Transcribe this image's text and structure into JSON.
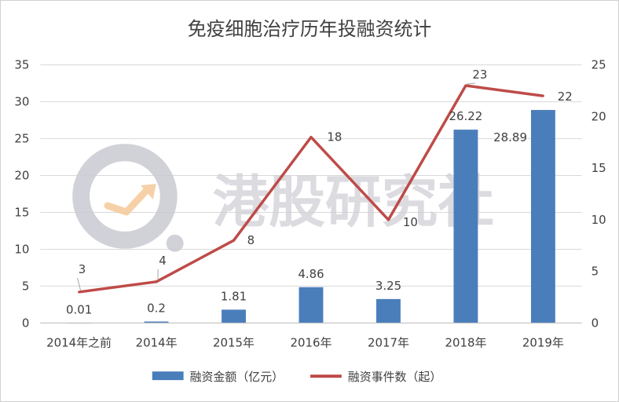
{
  "chart_data": {
    "type": "bar",
    "title": "免疫细胞治疗历年投融资统计",
    "categories": [
      "2014年之前",
      "2014年",
      "2015年",
      "2016年",
      "2017年",
      "2018年",
      "2019年"
    ],
    "series": [
      {
        "name": "融资金额（亿元）",
        "type": "bar",
        "axis": "left",
        "color": "#4a7ebb",
        "values": [
          0.01,
          0.2,
          1.81,
          4.86,
          3.25,
          26.22,
          28.89
        ],
        "labels": [
          "0.01",
          "0.2",
          "1.81",
          "4.86",
          "3.25",
          "26.22",
          "28.89"
        ]
      },
      {
        "name": "融资事件数（起）",
        "type": "line",
        "axis": "right",
        "color": "#be4b48",
        "values": [
          3,
          4,
          8,
          18,
          10,
          23,
          22
        ],
        "labels": [
          "3",
          "4",
          "8",
          "18",
          "10",
          "23",
          "22"
        ]
      }
    ],
    "y_left": {
      "min": 0,
      "max": 35,
      "ticks": [
        "0",
        "5",
        "10",
        "15",
        "20",
        "25",
        "30",
        "35"
      ]
    },
    "y_right": {
      "min": 0,
      "max": 25,
      "ticks": [
        "0",
        "5",
        "10",
        "15",
        "20",
        "25"
      ]
    },
    "grid": true,
    "legend": "bottom"
  },
  "watermark": {
    "text": "港股研究社",
    "logo_icon": "magnifier-arrow-logo-icon"
  }
}
